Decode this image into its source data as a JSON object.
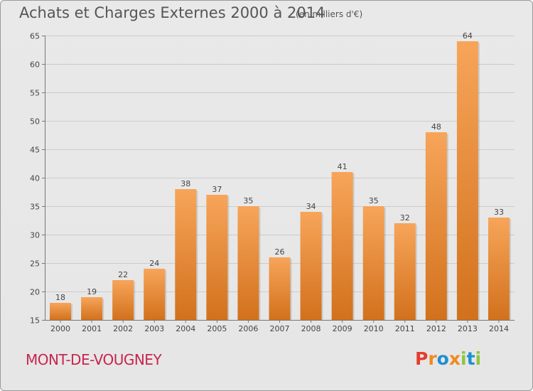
{
  "header": {
    "title": "Achats et Charges Externes 2000 à 2014",
    "subtitle": "(en milliers d'€)"
  },
  "footer": {
    "location": "MONT-DE-VOUGNEY",
    "logo": "Proxiti"
  },
  "colors": {
    "bar_light": "#f7a55a",
    "bar_dark": "#d2711c",
    "location_text": "#c8254f",
    "grid": "#cccccc",
    "logo_letters": [
      "#e43d2e",
      "#f08a1c",
      "#1f8fd0",
      "#f08a1c",
      "#8dc63f",
      "#1f8fd0",
      "#8dc63f"
    ]
  },
  "chart_data": {
    "type": "bar",
    "title": "Achats et Charges Externes 2000 à 2014",
    "subtitle": "(en milliers d'€)",
    "categories": [
      "2000",
      "2001",
      "2002",
      "2003",
      "2004",
      "2005",
      "2006",
      "2007",
      "2008",
      "2009",
      "2010",
      "2011",
      "2012",
      "2013",
      "2014"
    ],
    "values": [
      18,
      19,
      22,
      24,
      38,
      37,
      35,
      26,
      34,
      41,
      35,
      32,
      48,
      64,
      33
    ],
    "ylim": [
      15,
      65
    ],
    "yticks": [
      15,
      20,
      25,
      30,
      35,
      40,
      45,
      50,
      55,
      60,
      65
    ],
    "grid": "horizontal",
    "data_labels": true
  }
}
